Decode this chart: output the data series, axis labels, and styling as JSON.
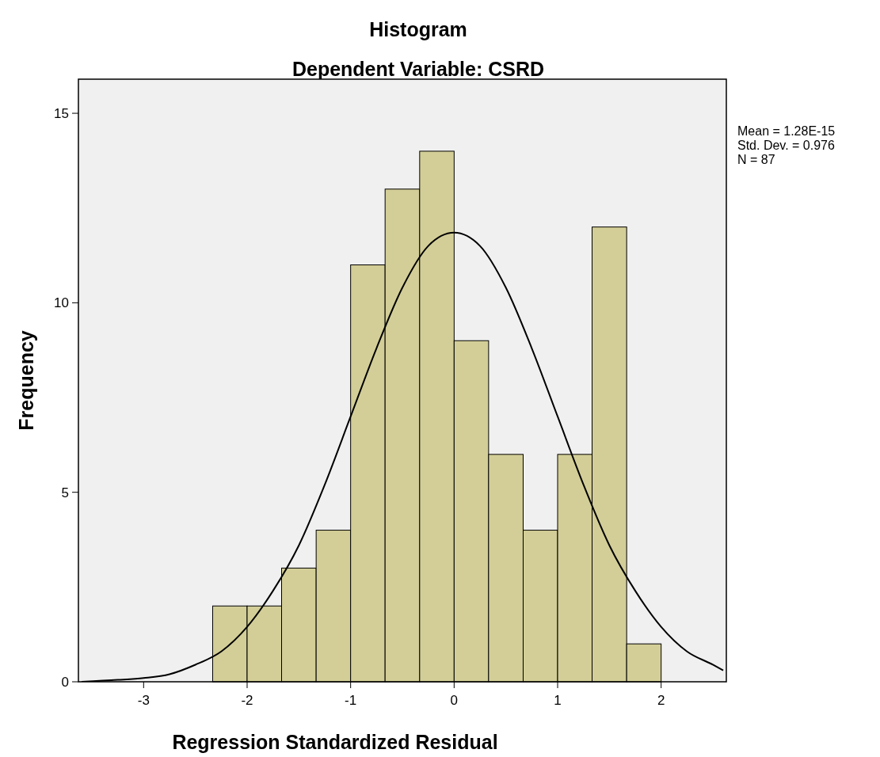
{
  "chart_data": {
    "type": "histogram",
    "title": "Histogram",
    "subtitle": "Dependent Variable: CSRD",
    "xlabel": "Regression Standardized Residual",
    "ylabel": "Frequency",
    "bins": [
      -2.333,
      -2,
      -1.667,
      -1.333,
      -1,
      -0.667,
      -0.333,
      0,
      0.333,
      0.667,
      1,
      1.333,
      1.667,
      2
    ],
    "values": [
      2,
      2,
      3,
      4,
      11,
      13,
      14,
      9,
      6,
      4,
      6,
      12,
      1
    ],
    "color": "#d3ce97",
    "series": [
      {
        "type": "line",
        "color": "#000000",
        "x": [
          -3.6,
          -3.25,
          -3,
          -2.75,
          -2.5,
          -2.25,
          -2,
          -1.75,
          -1.5,
          -1.25,
          -1,
          -0.75,
          -0.5,
          -0.25,
          0,
          0.25,
          0.5,
          0.75,
          1,
          1.25,
          1.5,
          1.75,
          2,
          2.25,
          2.5,
          2.6
        ],
        "values": [
          0,
          0.05,
          0.1,
          0.2,
          0.45,
          0.8,
          1.45,
          2.4,
          3.6,
          5.2,
          7,
          8.8,
          10.4,
          11.5,
          11.85,
          11.5,
          10.4,
          8.8,
          7,
          5.2,
          3.6,
          2.4,
          1.45,
          0.8,
          0.45,
          0.3
        ]
      }
    ],
    "xlim": [
      -3.63,
      2.63
    ],
    "ylim": [
      0,
      15.9
    ],
    "xticks": [
      -3,
      -2,
      -1,
      0,
      1,
      2
    ],
    "yticks": [
      0,
      5,
      10,
      15
    ],
    "annotations": [
      "Mean = 1.28E-15",
      "Std. Dev. = 0.976",
      "N = 87"
    ],
    "grid": false
  }
}
